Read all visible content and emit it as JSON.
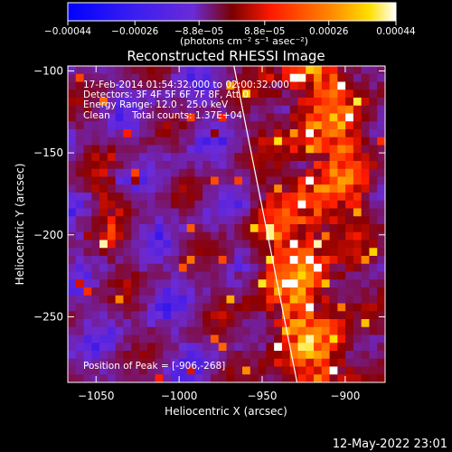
{
  "chart_data": {
    "type": "heatmap",
    "title": "Reconstructed RHESSI Image",
    "xlabel": "Heliocentric X (arcsec)",
    "ylabel": "Heliocentric Y (arcsec)",
    "xlim": [
      -1067,
      -876
    ],
    "ylim": [
      -290,
      -97
    ],
    "x_ticks": [
      -1050,
      -1000,
      -950,
      -900
    ],
    "x_tick_labels": [
      "−1050",
      "−1000",
      "−950",
      "−900"
    ],
    "y_ticks": [
      -100,
      -150,
      -200,
      -250
    ],
    "y_tick_labels": [
      "−100",
      "−150",
      "−200",
      "−250"
    ],
    "colorbar": {
      "range": [
        -0.00044,
        0.00044
      ],
      "ticks": [
        -0.00044,
        -0.00026,
        -8.8e-05,
        8.8e-05,
        0.00026,
        0.00044
      ],
      "tick_labels": [
        "−0.00044",
        "−0.00026",
        "−8.8e−05",
        "8.8e−05",
        "0.00026",
        "0.00044"
      ],
      "unit_label": "(photons cm⁻² s⁻¹ asec⁻²)",
      "colors": [
        "#0000ff",
        "#6a2bd9",
        "#8a0000",
        "#ff1a00",
        "#ff8800",
        "#ffe000",
        "#ffffff"
      ]
    },
    "annotations": {
      "time_range": "17-Feb-2014 01:54:32.000 to 02:00:32.000",
      "detectors": "Detectors: 3F 4F 5F 6F 7F 8F, Att 0",
      "energy": "Energy Range: 12.0 - 25.0 keV",
      "algorithm": "Clean",
      "total_counts": "Total counts: 1.37E+04",
      "peak": "Position of Peak = [-906,-268]"
    },
    "peak": [
      -906,
      -268
    ],
    "limb_line": [
      [
        -967,
        -97
      ],
      [
        -929,
        -290
      ]
    ],
    "grid": false
  },
  "footer": {
    "date": "12-May-2022 23:01"
  }
}
